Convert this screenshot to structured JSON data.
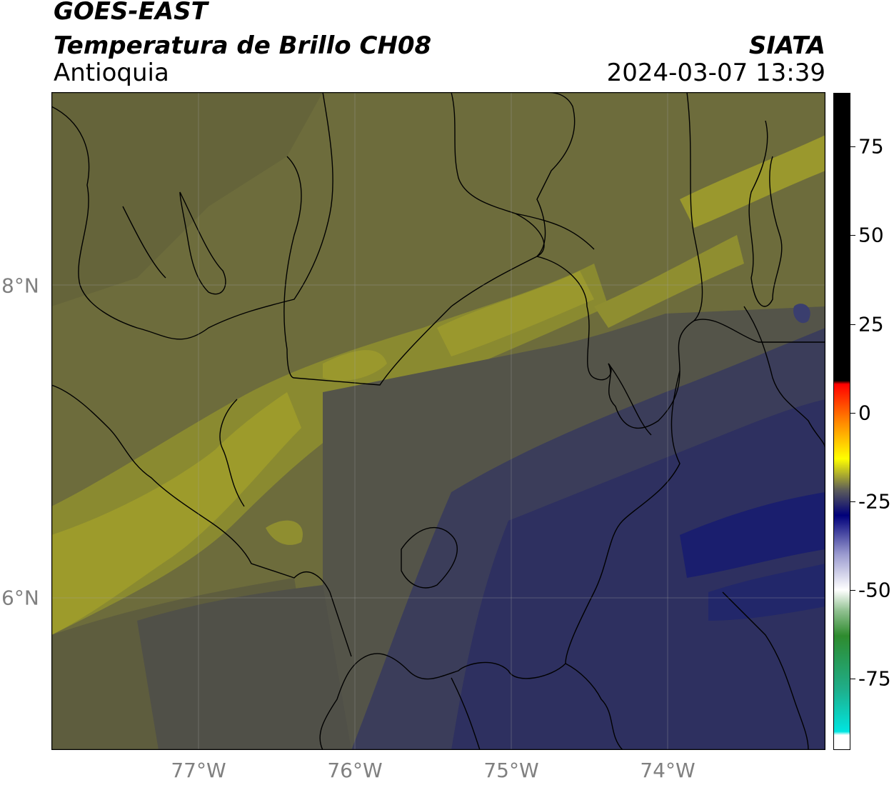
{
  "header": {
    "satellite": "GOES-EAST",
    "product": "Temperatura de Brillo CH08",
    "region": "Antioquia",
    "organization": "SIATA",
    "datetime": "2024-03-07 13:39"
  },
  "map": {
    "lat_labels": [
      "8°N",
      "6°N"
    ],
    "lon_labels": [
      "77°W",
      "76°W",
      "75°W",
      "74°W"
    ],
    "lat_range": [
      5.0,
      9.2
    ],
    "lon_range": [
      -77.95,
      -73.0
    ],
    "colors": {
      "olive": "#6e6d37",
      "yellow_olive": "#9d9b2b",
      "grey_olive": "#545449",
      "navy": "#2a2c5a",
      "deep_navy": "#1a1e6e"
    }
  },
  "colorbar": {
    "tick_labels": [
      "75",
      "50",
      "25",
      "0",
      "-25",
      "-50",
      "-75"
    ],
    "range": [
      -95,
      90
    ],
    "colors": [
      "#ffffff",
      "#00e5e0",
      "#1fae8a",
      "#2e8b2e",
      "#8fc08f",
      "#ffffff",
      "#9b9bd0",
      "#00007a",
      "#5a5a5a",
      "#ffff00",
      "#ff8000",
      "#ff0000",
      "#000000"
    ]
  }
}
